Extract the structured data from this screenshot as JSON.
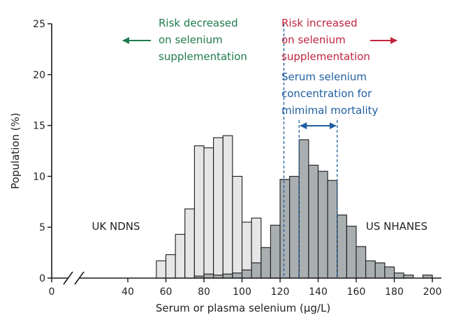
{
  "chart_data": {
    "type": "bar",
    "xlabel": "Serum or plasma selenium (μg/L)",
    "ylabel": "Population (%)",
    "xlim": [
      0,
      200
    ],
    "ylim": [
      0,
      25
    ],
    "x_ticks": [
      0,
      40,
      60,
      80,
      100,
      120,
      140,
      160,
      180,
      200
    ],
    "y_ticks": [
      0,
      5,
      10,
      15,
      20,
      25
    ],
    "bin_width": 5,
    "series": [
      {
        "name": "UK NDNS",
        "bin_starts": [
          55,
          60,
          65,
          70,
          75,
          80,
          85,
          90,
          95,
          100,
          105,
          110,
          115
        ],
        "values": [
          1.7,
          2.3,
          4.3,
          6.8,
          13.0,
          12.8,
          13.8,
          14.0,
          10.0,
          5.5,
          5.9,
          1.0,
          0.2
        ]
      },
      {
        "name": "US NHANES",
        "bin_starts": [
          75,
          80,
          85,
          90,
          95,
          100,
          105,
          110,
          115,
          120,
          125,
          130,
          135,
          140,
          145,
          150,
          155,
          160,
          165,
          170,
          175,
          180,
          185,
          195
        ],
        "values": [
          0.2,
          0.4,
          0.3,
          0.4,
          0.5,
          0.8,
          1.5,
          3.0,
          5.2,
          9.7,
          10.0,
          13.6,
          11.1,
          10.5,
          9.6,
          6.2,
          5.1,
          3.1,
          1.7,
          1.5,
          1.1,
          0.5,
          0.3,
          0.3
        ]
      }
    ],
    "threshold": {
      "value": 122
    },
    "optimal_range": {
      "start": 130,
      "end": 150
    },
    "annotations": {
      "decreased": [
        "Risk decreased",
        "on selenium",
        "supplementation"
      ],
      "increased": [
        "Risk increased",
        "on selenium",
        "supplementation"
      ],
      "optimal": [
        "Serum selenium",
        "concentration for",
        "mimimal mortality"
      ]
    }
  },
  "colors": {
    "decreased": "#1f7a4d",
    "increased": "#c0243c",
    "optimal": "#1f5fa0",
    "uk_fill": "#e6e6e6",
    "us_fill": "#a9aeb1"
  }
}
